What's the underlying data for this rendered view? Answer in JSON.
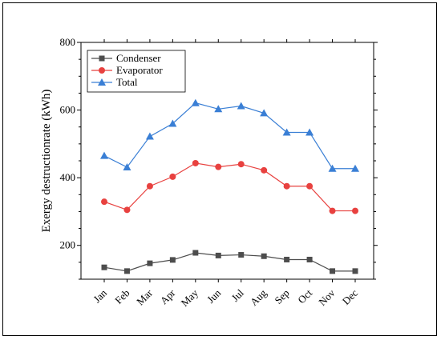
{
  "chart_data": {
    "type": "line",
    "title": "",
    "xlabel": "",
    "ylabel": "Exergy destructionrate (kWh)",
    "categories": [
      "Jan",
      "Feb",
      "Mar",
      "Apr",
      "May",
      "Jun",
      "Jul",
      "Aug",
      "Sep",
      "Oct",
      "Nov",
      "Dec"
    ],
    "ylim": [
      100,
      800
    ],
    "yticks": [
      200,
      400,
      600,
      800
    ],
    "legend_position": "top-left",
    "grid": false,
    "series": [
      {
        "name": "Condenser",
        "color": "#4d4d4d",
        "marker": "square",
        "values": [
          135,
          124,
          147,
          157,
          178,
          170,
          172,
          168,
          158,
          158,
          124,
          124
        ]
      },
      {
        "name": "Evaporator",
        "color": "#e8413f",
        "marker": "circle",
        "values": [
          329,
          305,
          375,
          403,
          443,
          432,
          440,
          422,
          375,
          375,
          302,
          302
        ]
      },
      {
        "name": "Total",
        "color": "#3a7fd5",
        "marker": "triangle",
        "values": [
          465,
          431,
          522,
          560,
          621,
          603,
          612,
          591,
          534,
          534,
          427,
          427
        ]
      }
    ]
  }
}
